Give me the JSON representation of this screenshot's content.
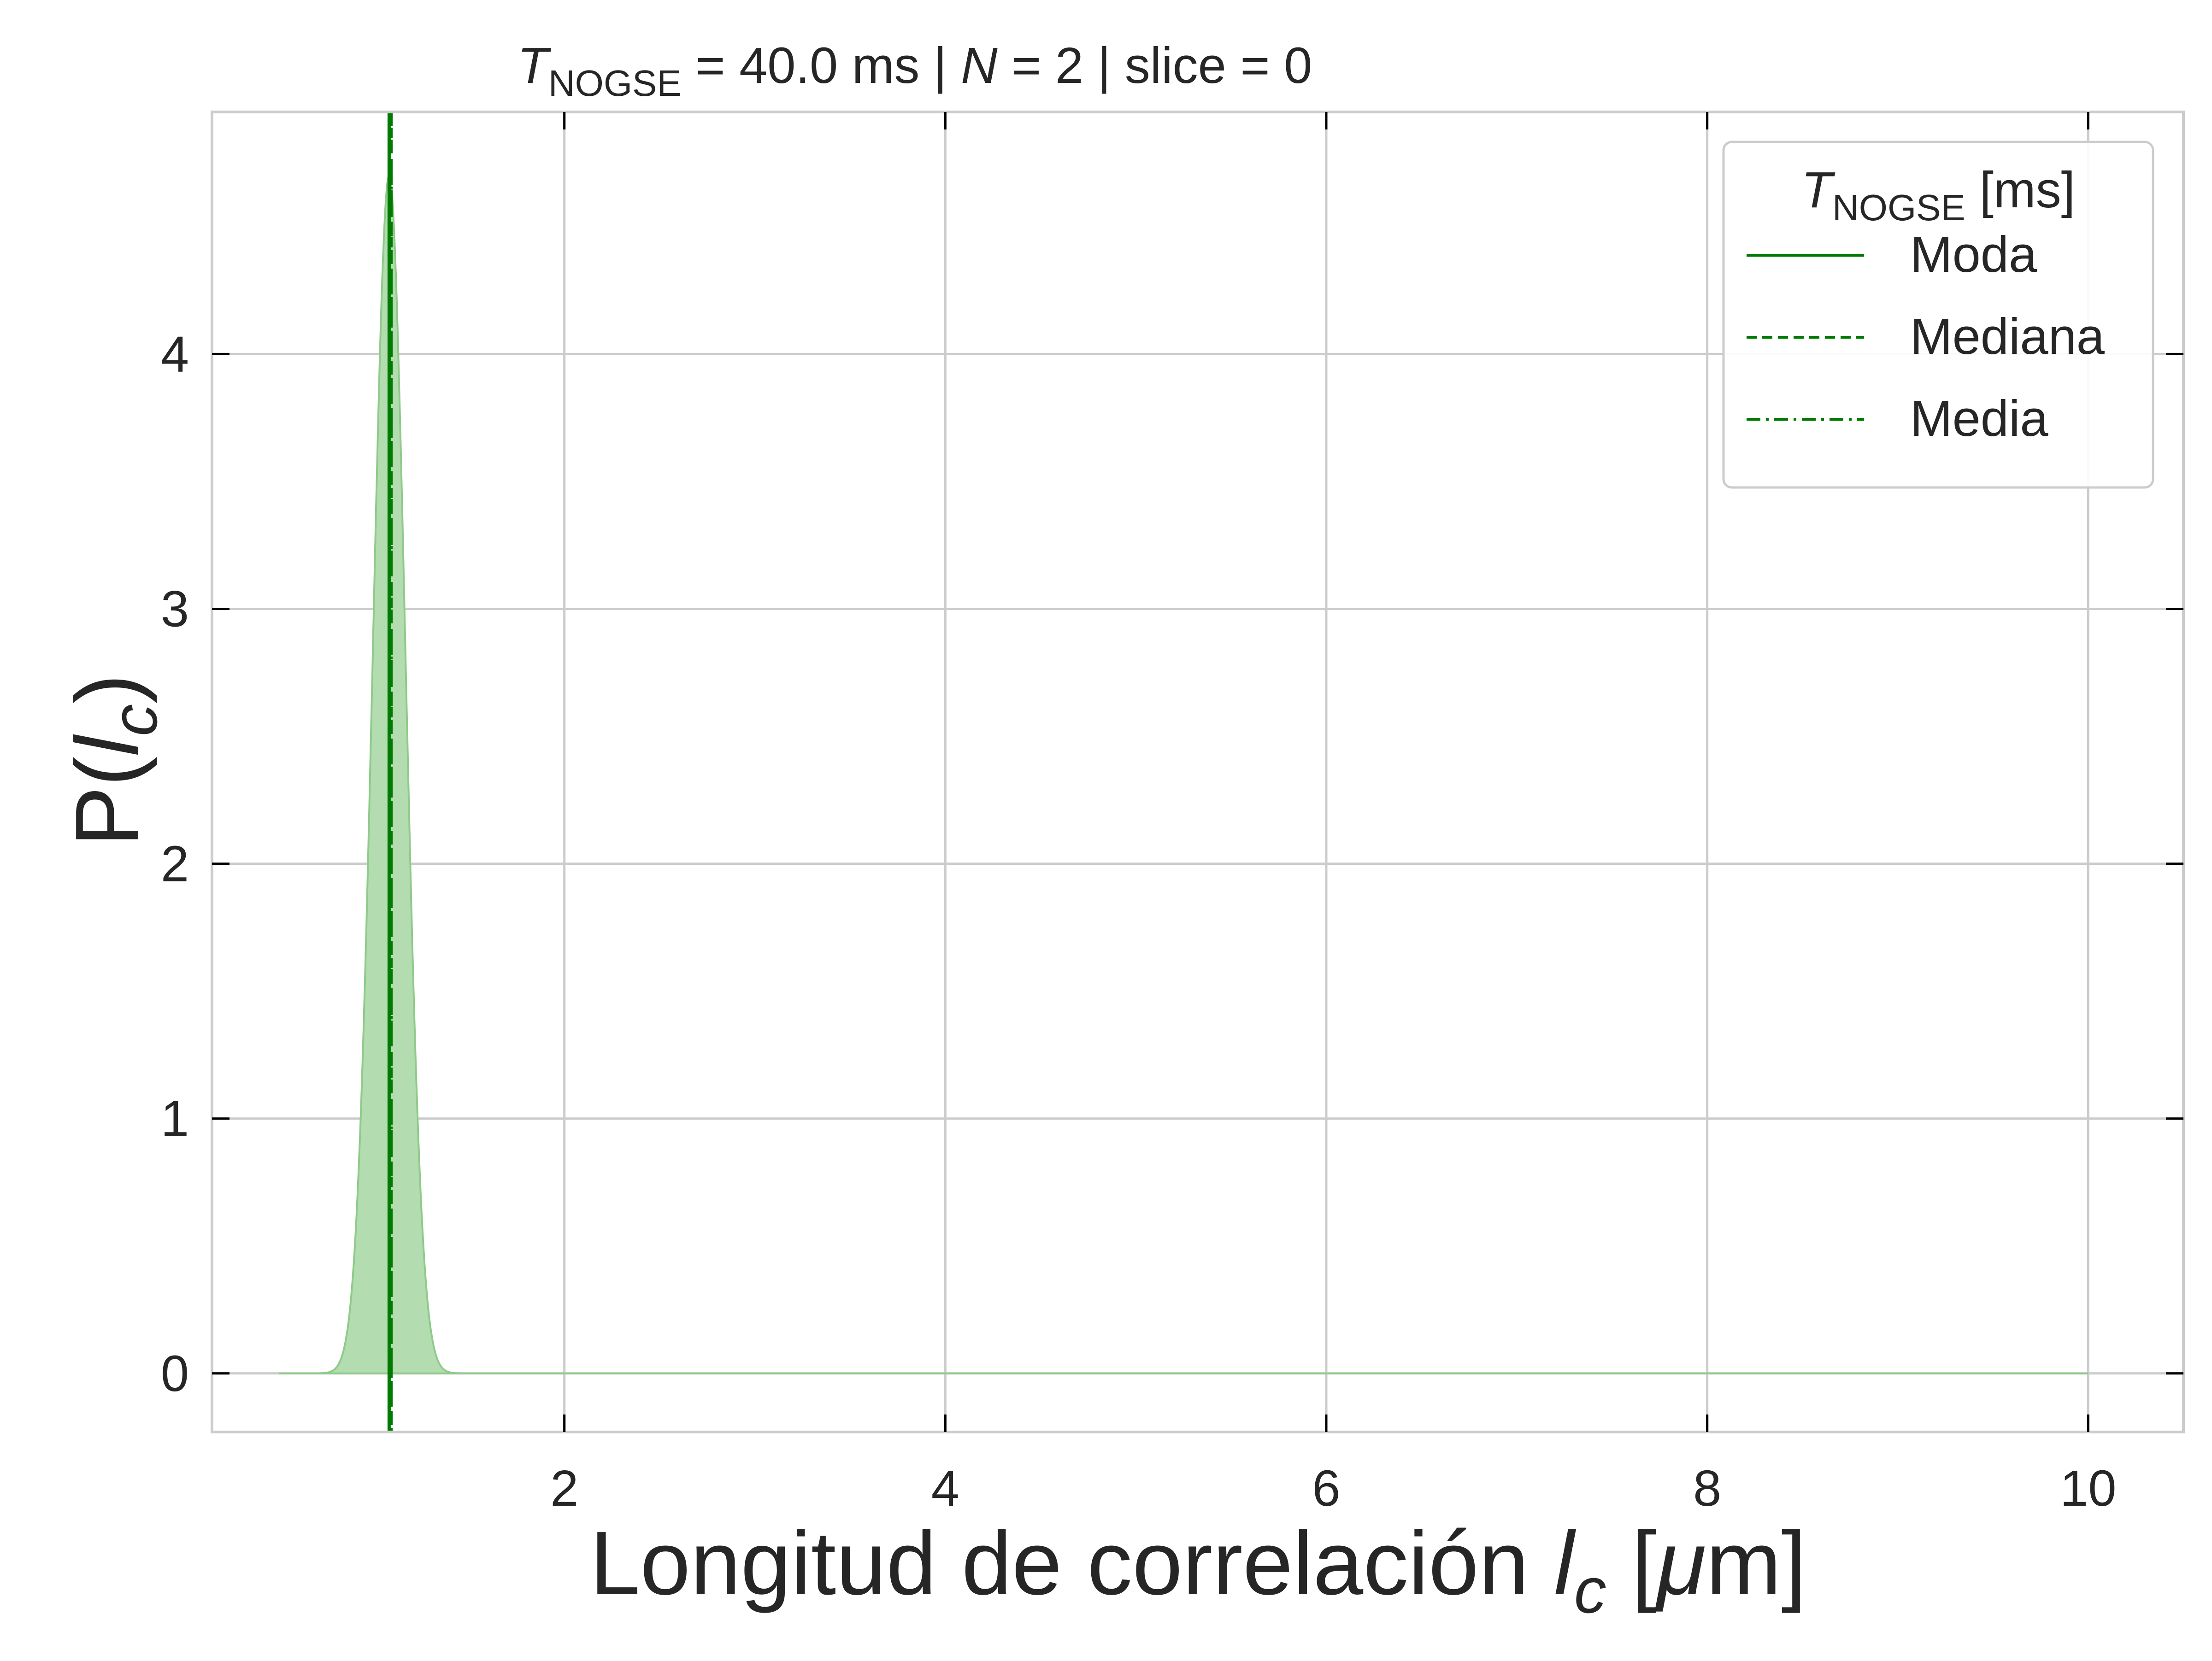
{
  "chart_data": {
    "type": "area",
    "title": {
      "var": "T",
      "sub": "NOGSE",
      "rest1": " = 40.0 ms | ",
      "var2": "N",
      "rest2": " = 2 | slice = 0"
    },
    "xlabel": {
      "text": "Longitud de correlación ",
      "var": "l",
      "sub": "c",
      "open": " [",
      "mu": "μ",
      "unit": "m]"
    },
    "ylabel": {
      "text": "P(",
      "var": "l",
      "sub": "c",
      "close": ")"
    },
    "xlim": [
      0.15,
      10.5
    ],
    "ylim": [
      -0.23,
      4.95
    ],
    "xticks": [
      2,
      4,
      6,
      8,
      10
    ],
    "yticks": [
      0,
      1,
      2,
      3,
      4
    ],
    "grid": true,
    "distribution": {
      "x_range": [
        0.5,
        10.0
      ],
      "peak_x": 1.08,
      "peak_value": 4.7,
      "sigma": 0.085
    },
    "vlines": [
      {
        "name": "Moda",
        "x": 1.08,
        "style": "solid"
      },
      {
        "name": "Mediana",
        "x": 1.09,
        "style": "dashed"
      },
      {
        "name": "Media",
        "x": 1.09,
        "style": "dashdot"
      }
    ],
    "legend": {
      "title_var": "T",
      "title_sub": "NOGSE",
      "title_rest": " [ms]",
      "entries": [
        "Moda",
        "Mediana",
        "Media"
      ],
      "placement": "top-right"
    },
    "colors": {
      "line": "#007a00",
      "fill": "#b3dcb0",
      "fill_edge": "#8fca8a",
      "grid": "#cccccc",
      "frame": "#cccccc",
      "ticks": "#000000",
      "text": "#262626"
    }
  }
}
